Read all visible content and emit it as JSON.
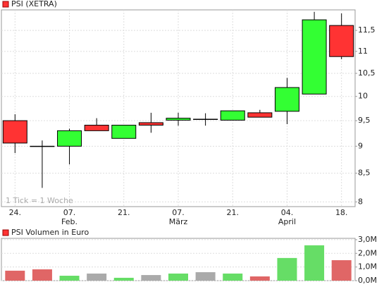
{
  "chart_data": [
    {
      "type": "candlestick",
      "title": "PSI (XETRA)",
      "annotation": "1 Tick = 1 Woche",
      "categories": [
        "24.",
        null,
        "07.\nFeb.",
        null,
        "21.",
        null,
        "07.\nMärz",
        null,
        "21.",
        null,
        "04.\nApril",
        null,
        "18."
      ],
      "open": [
        9.5,
        9.0,
        9.0,
        9.41,
        9.15,
        9.46,
        9.51,
        9.53,
        9.51,
        9.66,
        9.69,
        10.05,
        11.62
      ],
      "high": [
        9.63,
        9.11,
        9.34,
        9.55,
        9.41,
        9.66,
        9.66,
        9.65,
        9.7,
        9.72,
        10.4,
        11.96,
        11.92
      ],
      "low": [
        8.87,
        8.24,
        8.66,
        9.3,
        9.15,
        9.26,
        9.4,
        9.4,
        9.51,
        9.57,
        9.43,
        10.05,
        10.82
      ],
      "close": [
        9.06,
        9.0,
        9.3,
        9.3,
        9.41,
        9.41,
        9.55,
        9.53,
        9.7,
        9.57,
        10.19,
        11.76,
        10.88
      ],
      "up_color": "#33ff33",
      "down_color": "#ff3333",
      "flat_color": "#000000",
      "ylim": [
        7.92,
        12.01
      ],
      "log_scale": true,
      "grid": true,
      "yticks": [
        {
          "value": 8,
          "label": "8"
        },
        {
          "value": 8.5,
          "label": "8,5"
        },
        {
          "value": 9,
          "label": "9"
        },
        {
          "value": 9.5,
          "label": "9,5"
        },
        {
          "value": 10,
          "label": "10"
        },
        {
          "value": 10.5,
          "label": "10,5"
        },
        {
          "value": 11,
          "label": "11"
        },
        {
          "value": 11.5,
          "label": "11,5"
        }
      ]
    },
    {
      "type": "bar",
      "title": "PSI Volumen in Euro",
      "values": [
        0.73,
        0.83,
        0.36,
        0.52,
        0.21,
        0.41,
        0.52,
        0.62,
        0.52,
        0.31,
        1.66,
        2.59,
        1.5
      ],
      "colors": [
        "#e06666",
        "#e06666",
        "#66dd66",
        "#aaaaaa",
        "#66dd66",
        "#aaaaaa",
        "#66dd66",
        "#aaaaaa",
        "#66dd66",
        "#e06666",
        "#66dd66",
        "#66dd66",
        "#e06666"
      ],
      "ylim": [
        0,
        3.1
      ],
      "grid": true,
      "yticks": [
        {
          "value": 0,
          "label": "0,0M"
        },
        {
          "value": 1,
          "label": "1,0M"
        },
        {
          "value": 2,
          "label": "2,0M"
        },
        {
          "value": 3,
          "label": "3,0M"
        }
      ]
    }
  ]
}
